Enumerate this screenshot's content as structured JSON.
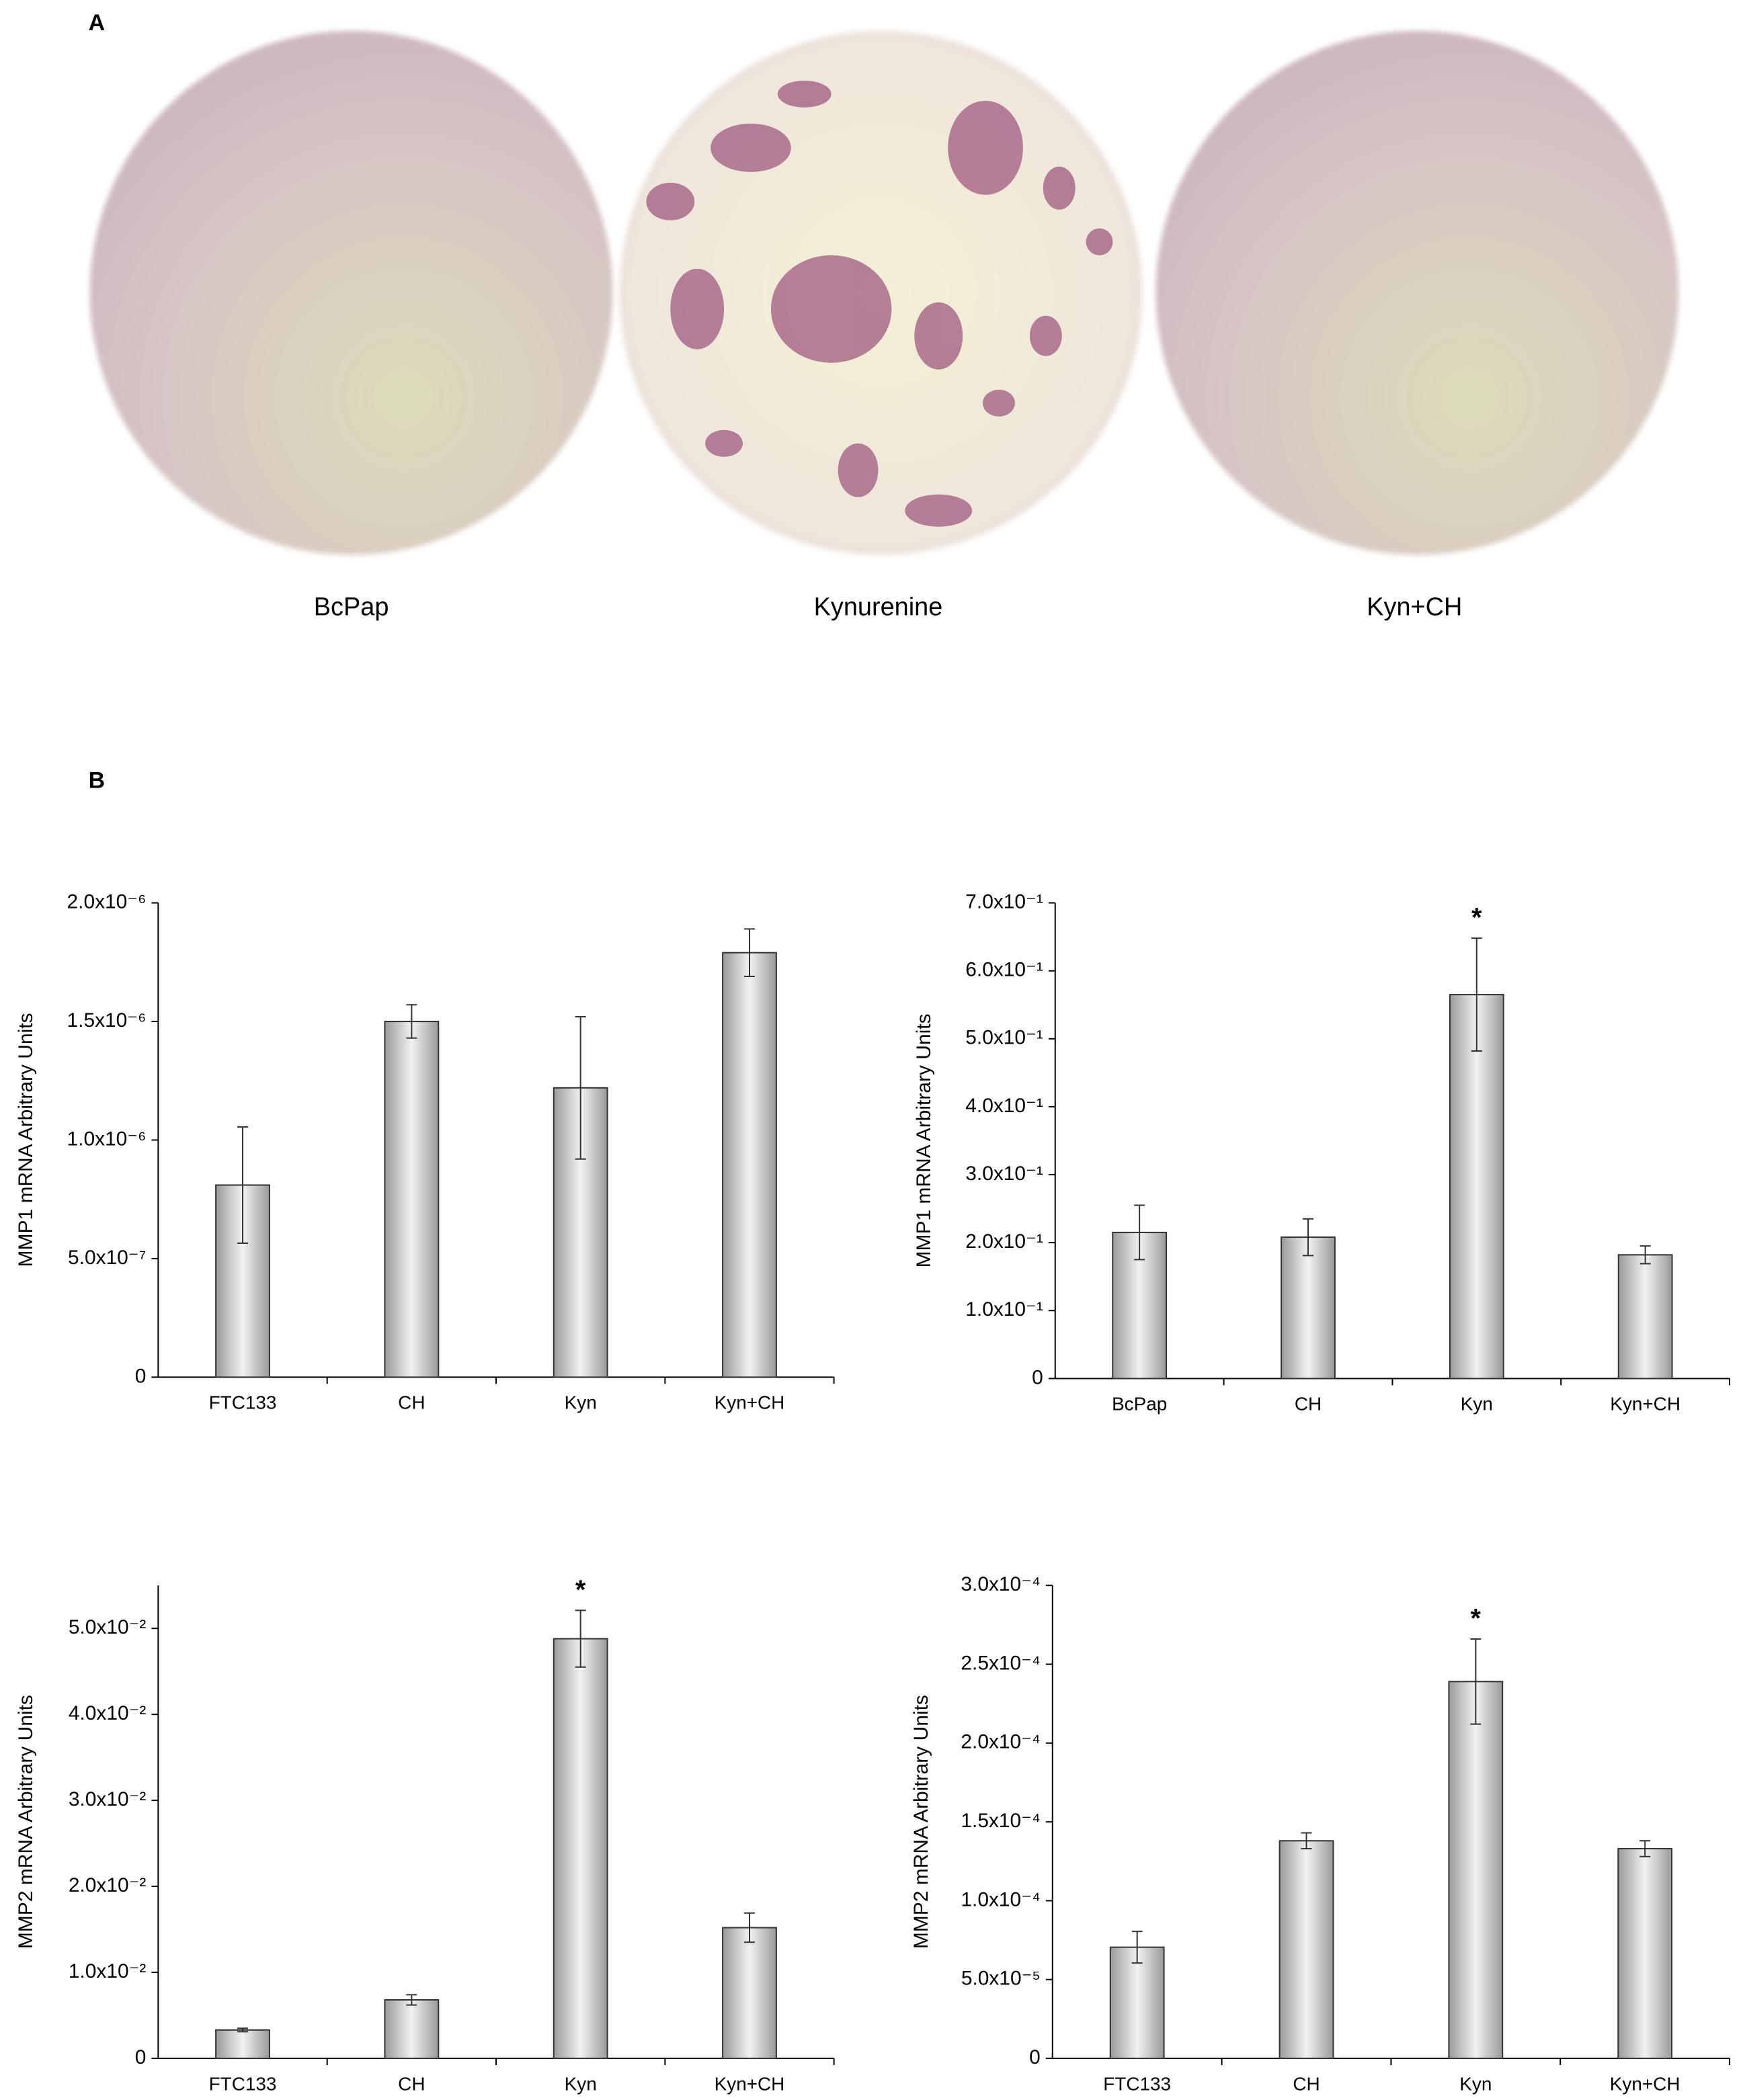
{
  "panels": {
    "a": "A",
    "b": "B"
  },
  "photos": [
    {
      "caption": "BcPap"
    },
    {
      "caption": "Kynurenine"
    },
    {
      "caption": "Kyn+CH"
    }
  ],
  "chart_data": [
    {
      "type": "bar",
      "y_label": "MMP1 mRNA Arbitrary Units",
      "color": "#9a9a9a",
      "categories": [
        "FTC133",
        "CH",
        "Kyn",
        "Kyn+CH"
      ],
      "values": [
        8.1e-07,
        1.5e-06,
        1.22e-06,
        1.79e-06
      ],
      "errors": [
        2.45e-07,
        7e-08,
        3e-07,
        1e-07
      ],
      "ylim": [
        0,
        2e-06
      ],
      "yticks": [
        0,
        {
          "value": 5e-07,
          "label": "5.0x10⁻⁷"
        },
        {
          "value": 1e-06,
          "label": "1.0x10⁻⁶"
        },
        {
          "value": 1.5e-06,
          "label": "1.5x10⁻⁶"
        },
        {
          "value": 2e-06,
          "label": "2.0x10⁻⁶"
        }
      ],
      "annotations": []
    },
    {
      "type": "bar",
      "y_label": "MMP1 mRNA Arbitrary Units",
      "color": "#9a9a9a",
      "categories": [
        "BcPap",
        "CH",
        "Kyn",
        "Kyn+CH"
      ],
      "values": [
        0.215,
        0.208,
        0.565,
        0.182
      ],
      "errors": [
        0.04,
        0.027,
        0.083,
        0.013
      ],
      "ylim": [
        0,
        0.7
      ],
      "yticks": [
        0,
        {
          "value": 0.1,
          "label": "1.0x10⁻¹"
        },
        {
          "value": 0.2,
          "label": "2.0x10⁻¹"
        },
        {
          "value": 0.3,
          "label": "3.0x10⁻¹"
        },
        {
          "value": 0.4,
          "label": "4.0x10⁻¹"
        },
        {
          "value": 0.5,
          "label": "5.0x10⁻¹"
        },
        {
          "value": 0.6,
          "label": "6.0x10⁻¹"
        },
        {
          "value": 0.7,
          "label": "7.0x10⁻¹"
        }
      ],
      "annotations": [
        {
          "text": "*",
          "category": "Kyn"
        }
      ]
    },
    {
      "type": "bar",
      "y_label": "MMP2 mRNA Arbitrary Units",
      "color": "#9a9a9a",
      "categories": [
        "FTC133",
        "CH",
        "Kyn",
        "Kyn+CH"
      ],
      "values": [
        0.0033,
        0.0068,
        0.0488,
        0.0152
      ],
      "errors": [
        0.0002,
        0.0006,
        0.0033,
        0.0017
      ],
      "ylim": [
        0,
        0.055
      ],
      "yticks": [
        0,
        {
          "value": 0.01,
          "label": "1.0x10⁻²"
        },
        {
          "value": 0.02,
          "label": "2.0x10⁻²"
        },
        {
          "value": 0.03,
          "label": "3.0x10⁻²"
        },
        {
          "value": 0.04,
          "label": "4.0x10⁻²"
        },
        {
          "value": 0.05,
          "label": "5.0x10⁻²"
        }
      ],
      "annotations": [
        {
          "text": "*",
          "category": "Kyn"
        }
      ]
    },
    {
      "type": "bar",
      "y_label": "MMP2 mRNA Arbitrary Units",
      "color": "#9a9a9a",
      "categories": [
        "FTC133",
        "CH",
        "Kyn",
        "Kyn+CH"
      ],
      "values": [
        7.05e-05,
        0.000138,
        0.000239,
        0.000133
      ],
      "errors": [
        1e-05,
        5e-06,
        2.7e-05,
        5e-06
      ],
      "ylim": [
        0,
        0.0003
      ],
      "yticks": [
        0,
        {
          "value": 5e-05,
          "label": "5.0x10⁻⁵"
        },
        {
          "value": 0.0001,
          "label": "1.0x10⁻⁴"
        },
        {
          "value": 0.00015,
          "label": "1.5x10⁻⁴"
        },
        {
          "value": 0.0002,
          "label": "2.0x10⁻⁴"
        },
        {
          "value": 0.00025,
          "label": "2.5x10⁻⁴"
        },
        {
          "value": 0.0003,
          "label": "3.0x10⁻⁴"
        }
      ],
      "annotations": [
        {
          "text": "*",
          "category": "Kyn"
        }
      ]
    }
  ]
}
